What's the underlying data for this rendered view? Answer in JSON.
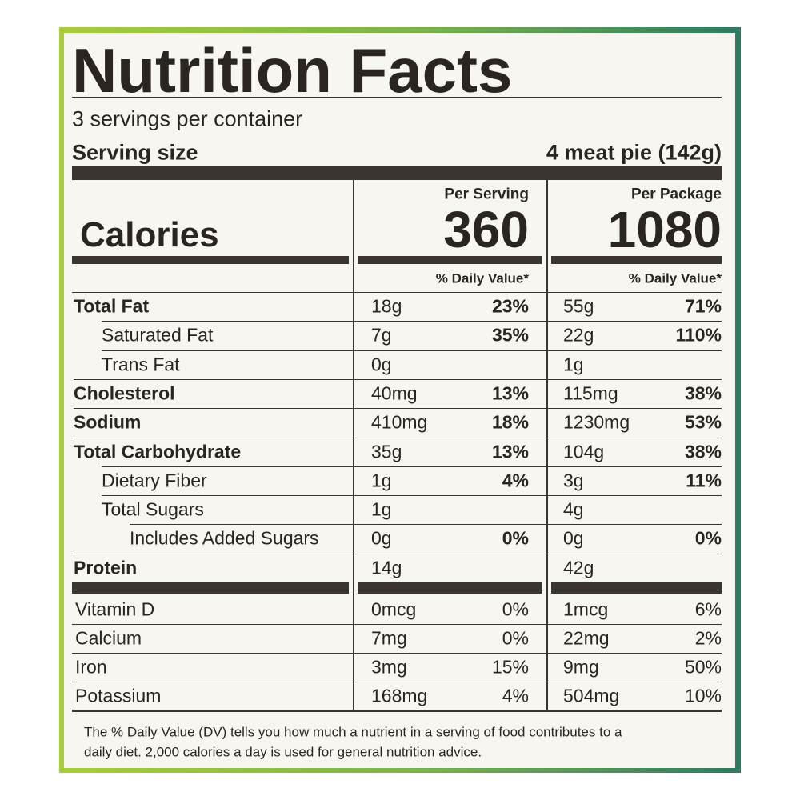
{
  "header": {
    "title": "Nutrition Facts",
    "servings": "3 servings per container",
    "serving_size_label": "Serving size",
    "serving_size": "4 meat pie (142g)"
  },
  "columns": [
    "Per Serving",
    "Per Package"
  ],
  "calories": {
    "label": "Calories",
    "values": [
      "360",
      "1080"
    ]
  },
  "daily_value_header": [
    "% Daily Value*",
    "% Daily Value*"
  ],
  "nutrients": [
    {
      "name": "Total Fat",
      "per_serving": [
        "18g",
        "23%"
      ],
      "per_package": [
        "55g",
        "71%"
      ]
    },
    {
      "name": "Saturated Fat",
      "per_serving": [
        "7g",
        "35%"
      ],
      "per_package": [
        "22g",
        "110%"
      ]
    },
    {
      "name": "Trans Fat",
      "per_serving": [
        "0g",
        null
      ],
      "per_package": [
        "1g",
        null
      ]
    },
    {
      "name": "Cholesterol",
      "per_serving": [
        "40mg",
        "13%"
      ],
      "per_package": [
        "115mg",
        "38%"
      ]
    },
    {
      "name": "Sodium",
      "per_serving": [
        "410mg",
        "18%"
      ],
      "per_package": [
        "1230mg",
        "53%"
      ]
    },
    {
      "name": "Total Carbohydrate",
      "per_serving": [
        "35g",
        "13%"
      ],
      "per_package": [
        "104g",
        "38%"
      ]
    },
    {
      "name": "Dietary Fiber",
      "per_serving": [
        "1g",
        "4%"
      ],
      "per_package": [
        "3g",
        "11%"
      ]
    },
    {
      "name": "Total Sugars",
      "per_serving": [
        "1g",
        null
      ],
      "per_package": [
        "4g",
        null
      ]
    },
    {
      "name": "Includes Added Sugars",
      "per_serving": [
        "0g",
        "0%"
      ],
      "per_package": [
        "0g",
        "0%"
      ]
    },
    {
      "name": "Protein",
      "per_serving": [
        "14g",
        null
      ],
      "per_package": [
        "42g",
        null
      ]
    }
  ],
  "vitamins": [
    {
      "name": "Vitamin D",
      "per_serving": [
        "0mcg",
        "0%"
      ],
      "per_package": [
        "1mcg",
        "6%"
      ]
    },
    {
      "name": "Calcium",
      "per_serving": [
        "7mg",
        "0%"
      ],
      "per_package": [
        "22mg",
        "2%"
      ]
    },
    {
      "name": "Iron",
      "per_serving": [
        "3mg",
        "15%"
      ],
      "per_package": [
        "9mg",
        "50%"
      ]
    },
    {
      "name": "Potassium",
      "per_serving": [
        "168mg",
        "4%"
      ],
      "per_package": [
        "504mg",
        "10%"
      ]
    }
  ],
  "footnote": [
    "The % Daily Value (DV) tells you how much a nutrient in a serving of food contributes to a",
    "daily diet. 2,000 calories a day is used for general nutrition advice."
  ]
}
